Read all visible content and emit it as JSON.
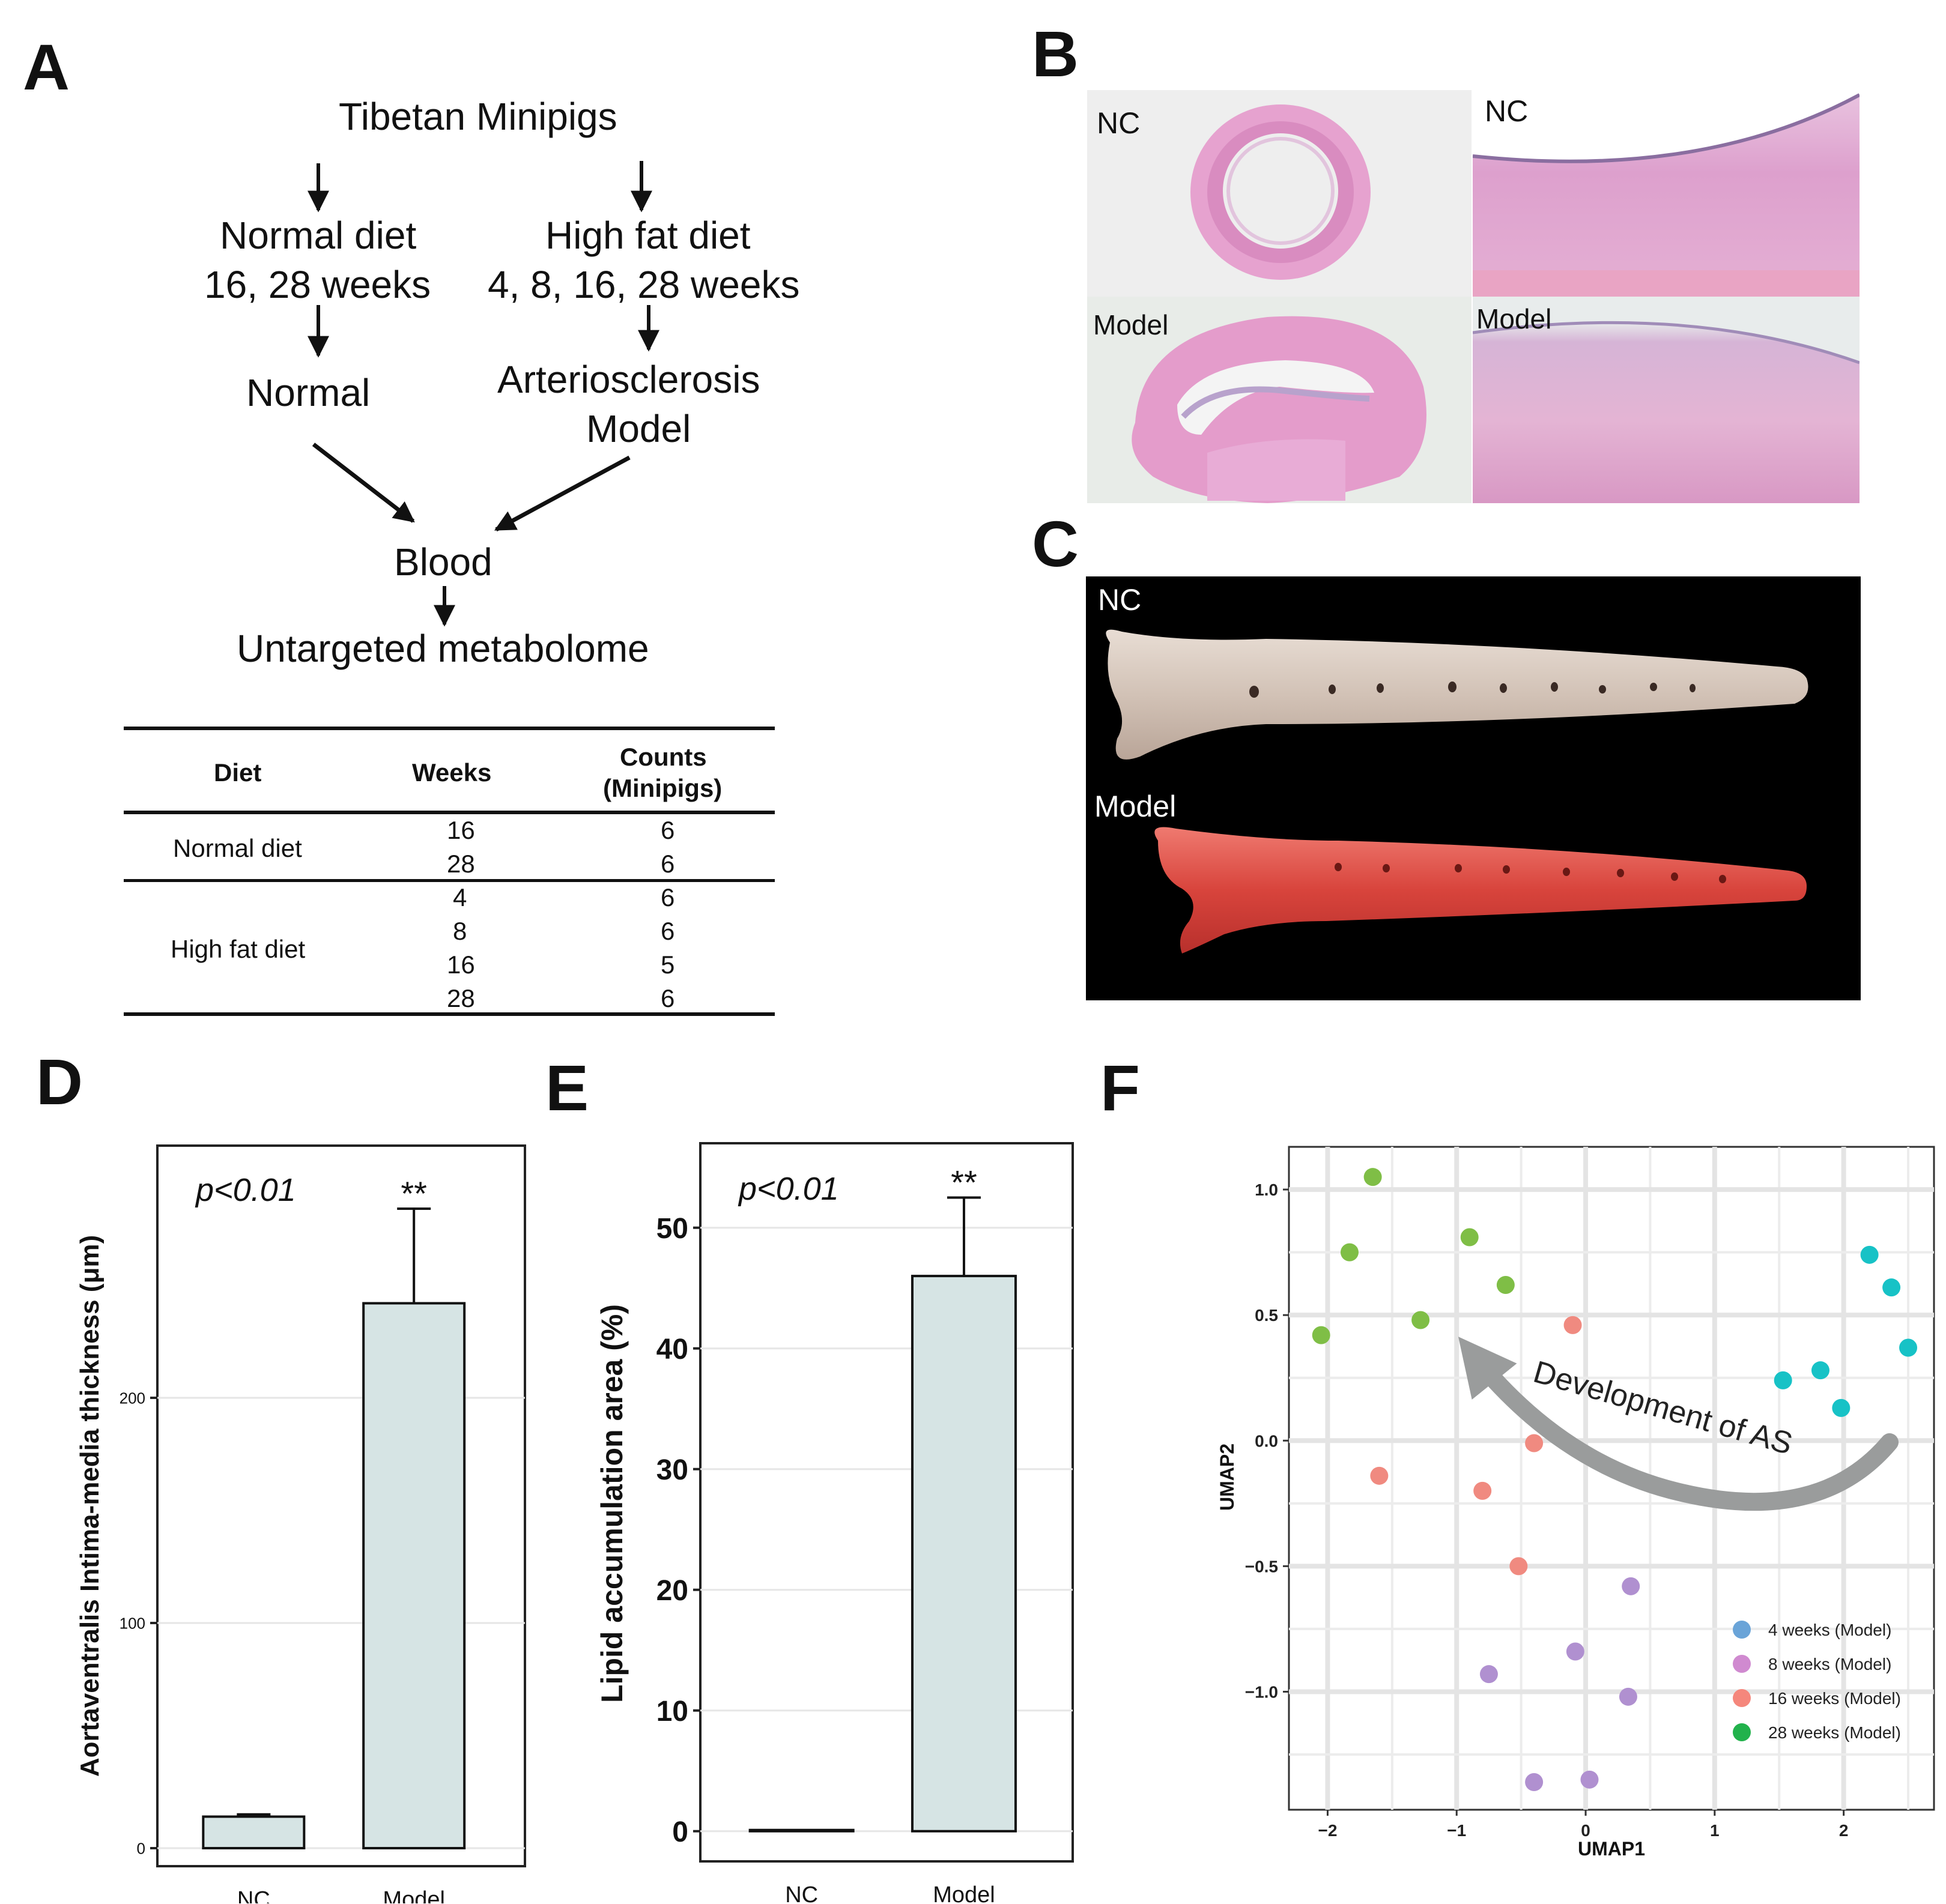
{
  "panels": {
    "a": "A",
    "b": "B",
    "c": "C",
    "d": "D",
    "e": "E",
    "f": "F"
  },
  "flowchart": {
    "top": "Tibetan Minipigs",
    "normal_diet": "Normal diet",
    "normal_weeks": "16, 28 weeks",
    "high_fat_diet": "High fat diet",
    "high_fat_weeks": "4, 8, 16, 28 weeks",
    "normal": "Normal",
    "model_line1": "Arteriosclerosis",
    "model_line2": "Model",
    "blood": "Blood",
    "metabolome": "Untargeted metabolome"
  },
  "table": {
    "headers": {
      "diet": "Diet",
      "weeks": "Weeks",
      "counts_line1": "Counts",
      "counts_line2": "(Minipigs)"
    },
    "groups": [
      {
        "diet": "Normal diet",
        "rows": [
          {
            "weeks": "16",
            "counts": "6"
          },
          {
            "weeks": "28",
            "counts": "6"
          }
        ]
      },
      {
        "diet": "High fat diet",
        "rows": [
          {
            "weeks": "4",
            "counts": "6"
          },
          {
            "weeks": "8",
            "counts": "6"
          },
          {
            "weeks": "16",
            "counts": "5"
          },
          {
            "weeks": "28",
            "counts": "6"
          }
        ]
      }
    ]
  },
  "histology": {
    "nc_left": "NC",
    "nc_right": "NC",
    "model_left": "Model",
    "model_right": "Model"
  },
  "gross": {
    "nc": "NC",
    "model": "Model"
  },
  "chart_data": [
    {
      "type": "bar",
      "categories": [
        "NC",
        "Model"
      ],
      "values": [
        14,
        242
      ],
      "errors": [
        1,
        42
      ],
      "ylabel": "Aortaventralis Intima-media thickness (μm)",
      "yticks": [
        0,
        100,
        200
      ],
      "ylim": [
        -8,
        312
      ],
      "pvalue": "p<0.01",
      "significance": "**",
      "bar_color": "#d6e4e4"
    },
    {
      "type": "bar",
      "categories": [
        "NC",
        "Model"
      ],
      "values": [
        0,
        46
      ],
      "errors": [
        0,
        6.5
      ],
      "ylabel": "Lipid accumulation area (%)",
      "yticks": [
        0,
        10,
        20,
        30,
        40,
        50
      ],
      "ylim": [
        -2.5,
        57
      ],
      "pvalue": "p<0.01",
      "significance": "**",
      "bar_color": "#d6e4e4"
    },
    {
      "type": "scatter",
      "xlabel": "UMAP1",
      "ylabel": "UMAP2",
      "xticks": [
        -2,
        -1,
        0,
        1,
        2
      ],
      "yticks": [
        -1.0,
        -0.5,
        0.0,
        0.5,
        1.0
      ],
      "xlim": [
        -2.3,
        2.7
      ],
      "ylim": [
        -1.47,
        1.17
      ],
      "grid": true,
      "legend_position": "bottom-right",
      "annotation": "Development of AS",
      "series": [
        {
          "name": "4 weeks (Model)",
          "color": "#17c2c6",
          "legend_color": "#6aa4d8",
          "points": [
            [
              2.2,
              0.74
            ],
            [
              2.37,
              0.61
            ],
            [
              2.5,
              0.37
            ],
            [
              1.53,
              0.24
            ],
            [
              1.82,
              0.28
            ],
            [
              1.98,
              0.13
            ]
          ]
        },
        {
          "name": "8 weeks (Model)",
          "color": "#b090d0",
          "legend_color": "#d08ad0",
          "points": [
            [
              0.35,
              -0.58
            ],
            [
              -0.08,
              -0.84
            ],
            [
              -0.75,
              -0.93
            ],
            [
              0.33,
              -1.02
            ],
            [
              -0.4,
              -1.36
            ],
            [
              0.03,
              -1.35
            ]
          ]
        },
        {
          "name": "16 weeks (Model)",
          "color": "#f08a80",
          "legend_color": "#f5877c",
          "points": [
            [
              -0.1,
              0.46
            ],
            [
              -0.4,
              -0.01
            ],
            [
              -1.6,
              -0.14
            ],
            [
              -0.8,
              -0.2
            ],
            [
              -0.52,
              -0.5
            ]
          ]
        },
        {
          "name": "28 weeks (Model)",
          "color": "#7fbe46",
          "legend_color": "#22b24c",
          "points": [
            [
              -1.65,
              1.05
            ],
            [
              -1.83,
              0.75
            ],
            [
              -0.9,
              0.81
            ],
            [
              -0.62,
              0.62
            ],
            [
              -1.28,
              0.48
            ],
            [
              -2.05,
              0.42
            ]
          ]
        }
      ]
    }
  ]
}
